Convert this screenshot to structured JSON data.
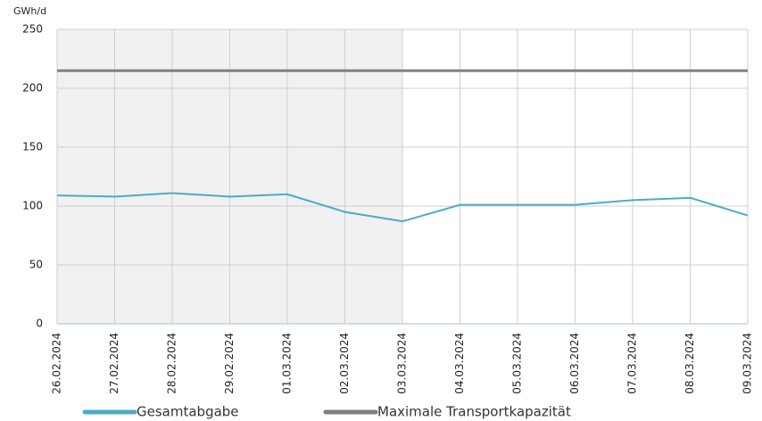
{
  "chart_data": {
    "type": "line",
    "y_axis_label": "GWh/d",
    "categories": [
      "26.02.2024",
      "27.02.2024",
      "28.02.2024",
      "29.02.2024",
      "01.03.2024",
      "02.03.2024",
      "03.03.2024",
      "04.03.2024",
      "05.03.2024",
      "06.03.2024",
      "07.03.2024",
      "08.03.2024",
      "09.03.2024"
    ],
    "series": [
      {
        "name": "Gesamtabgabe",
        "color": "#4bacc6",
        "values": [
          109,
          108,
          111,
          108,
          110,
          95,
          87,
          101,
          101,
          101,
          105,
          107,
          92
        ]
      },
      {
        "name": "Maximale Transportkapazität",
        "color": "#808080",
        "values": [
          215,
          215,
          215,
          215,
          215,
          215,
          215,
          215,
          215,
          215,
          215,
          215,
          215
        ]
      }
    ],
    "ylim": [
      0,
      250
    ],
    "yticks": [
      0,
      50,
      100,
      150,
      200,
      250
    ],
    "grid": true,
    "shaded_until": "03.03.2024",
    "legend": "bottom"
  }
}
